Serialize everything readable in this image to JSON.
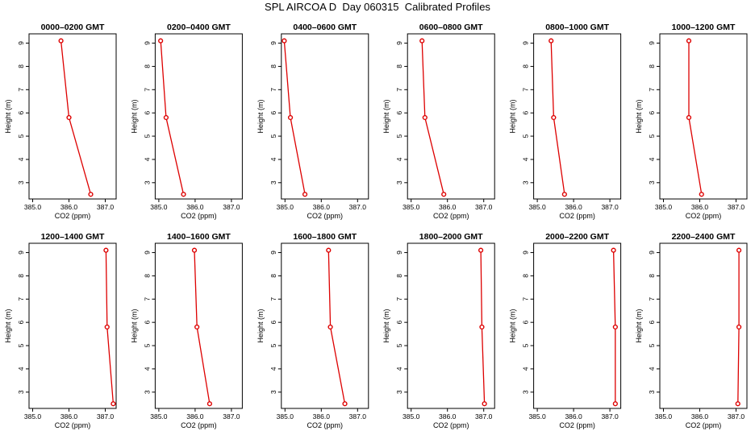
{
  "title": "SPL AIRCOA D  Day 060315  Calibrated Profiles",
  "colors": {
    "series": "#dd0000",
    "axis": "#000000"
  },
  "chart_data": [
    {
      "type": "line",
      "title": "0000–0200 GMT",
      "xlabel": "CO2 (ppm)",
      "ylabel": "Height (m)",
      "xlim": [
        384.9,
        387.3
      ],
      "ylim": [
        2.3,
        9.4
      ],
      "grid": false,
      "x_ticks": [
        "385.0",
        "386.0",
        "387.0"
      ],
      "y_ticks": [
        "3",
        "4",
        "5",
        "6",
        "7",
        "8",
        "9"
      ],
      "points": [
        {
          "x": 385.78,
          "y": 9.1
        },
        {
          "x": 386.0,
          "y": 5.8
        },
        {
          "x": 386.6,
          "y": 2.5
        }
      ]
    },
    {
      "type": "line",
      "title": "0200–0400 GMT",
      "xlabel": "CO2 (ppm)",
      "ylabel": "Height (m)",
      "xlim": [
        384.9,
        387.3
      ],
      "ylim": [
        2.3,
        9.4
      ],
      "grid": false,
      "x_ticks": [
        "385.0",
        "386.0",
        "387.0"
      ],
      "y_ticks": [
        "3",
        "4",
        "5",
        "6",
        "7",
        "8",
        "9"
      ],
      "points": [
        {
          "x": 385.05,
          "y": 9.1
        },
        {
          "x": 385.2,
          "y": 5.8
        },
        {
          "x": 385.68,
          "y": 2.5
        }
      ]
    },
    {
      "type": "line",
      "title": "0400–0600 GMT",
      "xlabel": "CO2 (ppm)",
      "ylabel": "Height (m)",
      "xlim": [
        384.9,
        387.3
      ],
      "ylim": [
        2.3,
        9.4
      ],
      "grid": false,
      "x_ticks": [
        "385.0",
        "386.0",
        "387.0"
      ],
      "y_ticks": [
        "3",
        "4",
        "5",
        "6",
        "7",
        "8",
        "9"
      ],
      "points": [
        {
          "x": 384.98,
          "y": 9.1
        },
        {
          "x": 385.15,
          "y": 5.8
        },
        {
          "x": 385.55,
          "y": 2.5
        }
      ]
    },
    {
      "type": "line",
      "title": "0600–0800 GMT",
      "xlabel": "CO2 (ppm)",
      "ylabel": "Height (m)",
      "xlim": [
        384.9,
        387.3
      ],
      "ylim": [
        2.3,
        9.4
      ],
      "grid": false,
      "x_ticks": [
        "385.0",
        "386.0",
        "387.0"
      ],
      "y_ticks": [
        "3",
        "4",
        "5",
        "6",
        "7",
        "8",
        "9"
      ],
      "points": [
        {
          "x": 385.3,
          "y": 9.1
        },
        {
          "x": 385.38,
          "y": 5.8
        },
        {
          "x": 385.9,
          "y": 2.5
        }
      ]
    },
    {
      "type": "line",
      "title": "0800–1000 GMT",
      "xlabel": "CO2 (ppm)",
      "ylabel": "Height (m)",
      "xlim": [
        384.9,
        387.3
      ],
      "ylim": [
        2.3,
        9.4
      ],
      "grid": false,
      "x_ticks": [
        "385.0",
        "386.0",
        "387.0"
      ],
      "y_ticks": [
        "3",
        "4",
        "5",
        "6",
        "7",
        "8",
        "9"
      ],
      "points": [
        {
          "x": 385.38,
          "y": 9.1
        },
        {
          "x": 385.45,
          "y": 5.8
        },
        {
          "x": 385.75,
          "y": 2.5
        }
      ]
    },
    {
      "type": "line",
      "title": "1000–1200 GMT",
      "xlabel": "CO2 (ppm)",
      "ylabel": "Height (m)",
      "xlim": [
        384.9,
        387.3
      ],
      "ylim": [
        2.3,
        9.4
      ],
      "grid": false,
      "x_ticks": [
        "385.0",
        "386.0",
        "387.0"
      ],
      "y_ticks": [
        "3",
        "4",
        "5",
        "6",
        "7",
        "8",
        "9"
      ],
      "points": [
        {
          "x": 385.7,
          "y": 9.1
        },
        {
          "x": 385.7,
          "y": 5.8
        },
        {
          "x": 386.05,
          "y": 2.5
        }
      ]
    },
    {
      "type": "line",
      "title": "1200–1400 GMT",
      "xlabel": "CO2 (ppm)",
      "ylabel": "Height (m)",
      "xlim": [
        384.9,
        387.3
      ],
      "ylim": [
        2.3,
        9.4
      ],
      "grid": false,
      "x_ticks": [
        "385.0",
        "386.0",
        "387.0"
      ],
      "y_ticks": [
        "3",
        "4",
        "5",
        "6",
        "7",
        "8",
        "9"
      ],
      "points": [
        {
          "x": 387.02,
          "y": 9.1
        },
        {
          "x": 387.05,
          "y": 5.8
        },
        {
          "x": 387.22,
          "y": 2.5
        }
      ]
    },
    {
      "type": "line",
      "title": "1400–1600 GMT",
      "xlabel": "CO2 (ppm)",
      "ylabel": "Height (m)",
      "xlim": [
        384.9,
        387.3
      ],
      "ylim": [
        2.3,
        9.4
      ],
      "grid": false,
      "x_ticks": [
        "385.0",
        "386.0",
        "387.0"
      ],
      "y_ticks": [
        "3",
        "4",
        "5",
        "6",
        "7",
        "8",
        "9"
      ],
      "points": [
        {
          "x": 385.98,
          "y": 9.1
        },
        {
          "x": 386.05,
          "y": 5.8
        },
        {
          "x": 386.4,
          "y": 2.5
        }
      ]
    },
    {
      "type": "line",
      "title": "1600–1800 GMT",
      "xlabel": "CO2 (ppm)",
      "ylabel": "Height (m)",
      "xlim": [
        384.9,
        387.3
      ],
      "ylim": [
        2.3,
        9.4
      ],
      "grid": false,
      "x_ticks": [
        "385.0",
        "386.0",
        "387.0"
      ],
      "y_ticks": [
        "3",
        "4",
        "5",
        "6",
        "7",
        "8",
        "9"
      ],
      "points": [
        {
          "x": 386.2,
          "y": 9.1
        },
        {
          "x": 386.25,
          "y": 5.8
        },
        {
          "x": 386.65,
          "y": 2.5
        }
      ]
    },
    {
      "type": "line",
      "title": "1800–2000 GMT",
      "xlabel": "CO2 (ppm)",
      "ylabel": "Height (m)",
      "xlim": [
        384.9,
        387.3
      ],
      "ylim": [
        2.3,
        9.4
      ],
      "grid": false,
      "x_ticks": [
        "385.0",
        "386.0",
        "387.0"
      ],
      "y_ticks": [
        "3",
        "4",
        "5",
        "6",
        "7",
        "8",
        "9"
      ],
      "points": [
        {
          "x": 386.92,
          "y": 9.1
        },
        {
          "x": 386.95,
          "y": 5.8
        },
        {
          "x": 387.02,
          "y": 2.5
        }
      ]
    },
    {
      "type": "line",
      "title": "2000–2200 GMT",
      "xlabel": "CO2 (ppm)",
      "ylabel": "Height (m)",
      "xlim": [
        384.9,
        387.3
      ],
      "ylim": [
        2.3,
        9.4
      ],
      "grid": false,
      "x_ticks": [
        "385.0",
        "386.0",
        "387.0"
      ],
      "y_ticks": [
        "3",
        "4",
        "5",
        "6",
        "7",
        "8",
        "9"
      ],
      "points": [
        {
          "x": 387.1,
          "y": 9.1
        },
        {
          "x": 387.15,
          "y": 5.8
        },
        {
          "x": 387.15,
          "y": 2.5
        }
      ]
    },
    {
      "type": "line",
      "title": "2200–2400 GMT",
      "xlabel": "CO2 (ppm)",
      "ylabel": "Height (m)",
      "xlim": [
        384.9,
        387.3
      ],
      "ylim": [
        2.3,
        9.4
      ],
      "grid": false,
      "x_ticks": [
        "385.0",
        "386.0",
        "387.0"
      ],
      "y_ticks": [
        "3",
        "4",
        "5",
        "6",
        "7",
        "8",
        "9"
      ],
      "points": [
        {
          "x": 387.08,
          "y": 9.1
        },
        {
          "x": 387.08,
          "y": 5.8
        },
        {
          "x": 387.05,
          "y": 2.5
        }
      ]
    }
  ]
}
